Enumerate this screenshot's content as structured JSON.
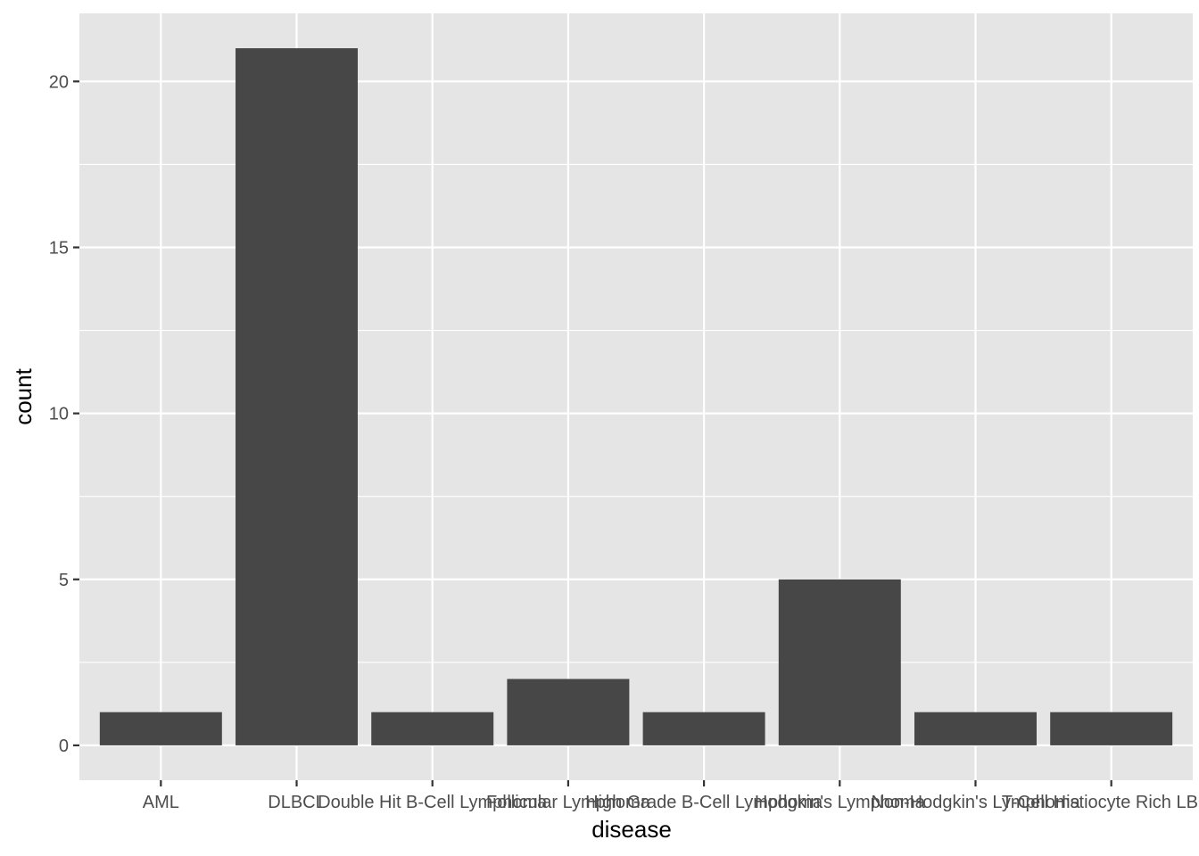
{
  "chart_data": {
    "type": "bar",
    "xlabel": "disease",
    "ylabel": "count",
    "categories": [
      "AML",
      "DLBCL",
      "Double Hit B-Cell Lymphoma",
      "Follicular Lymphoma",
      "High Grade B-Cell Lymphoma",
      "Hodgkin's Lymphoma",
      "Non-Hodgkin's Lymphoma",
      "T-Cell Histiocyte Rich LBCL"
    ],
    "values": [
      1,
      21,
      1,
      2,
      1,
      5,
      1,
      1
    ],
    "ylim": [
      -1.05,
      22.05
    ],
    "yticks": [
      0,
      5,
      10,
      15,
      20
    ],
    "ytick_labels": [
      "0",
      "5",
      "10",
      "15",
      "20"
    ],
    "grid": true,
    "colors": {
      "panel_background": "#e5e5e5",
      "grid": "#ffffff",
      "bar": "#474747",
      "tick": "#333333",
      "tick_label": "#4d4d4d",
      "axis_title": "#000000"
    }
  }
}
